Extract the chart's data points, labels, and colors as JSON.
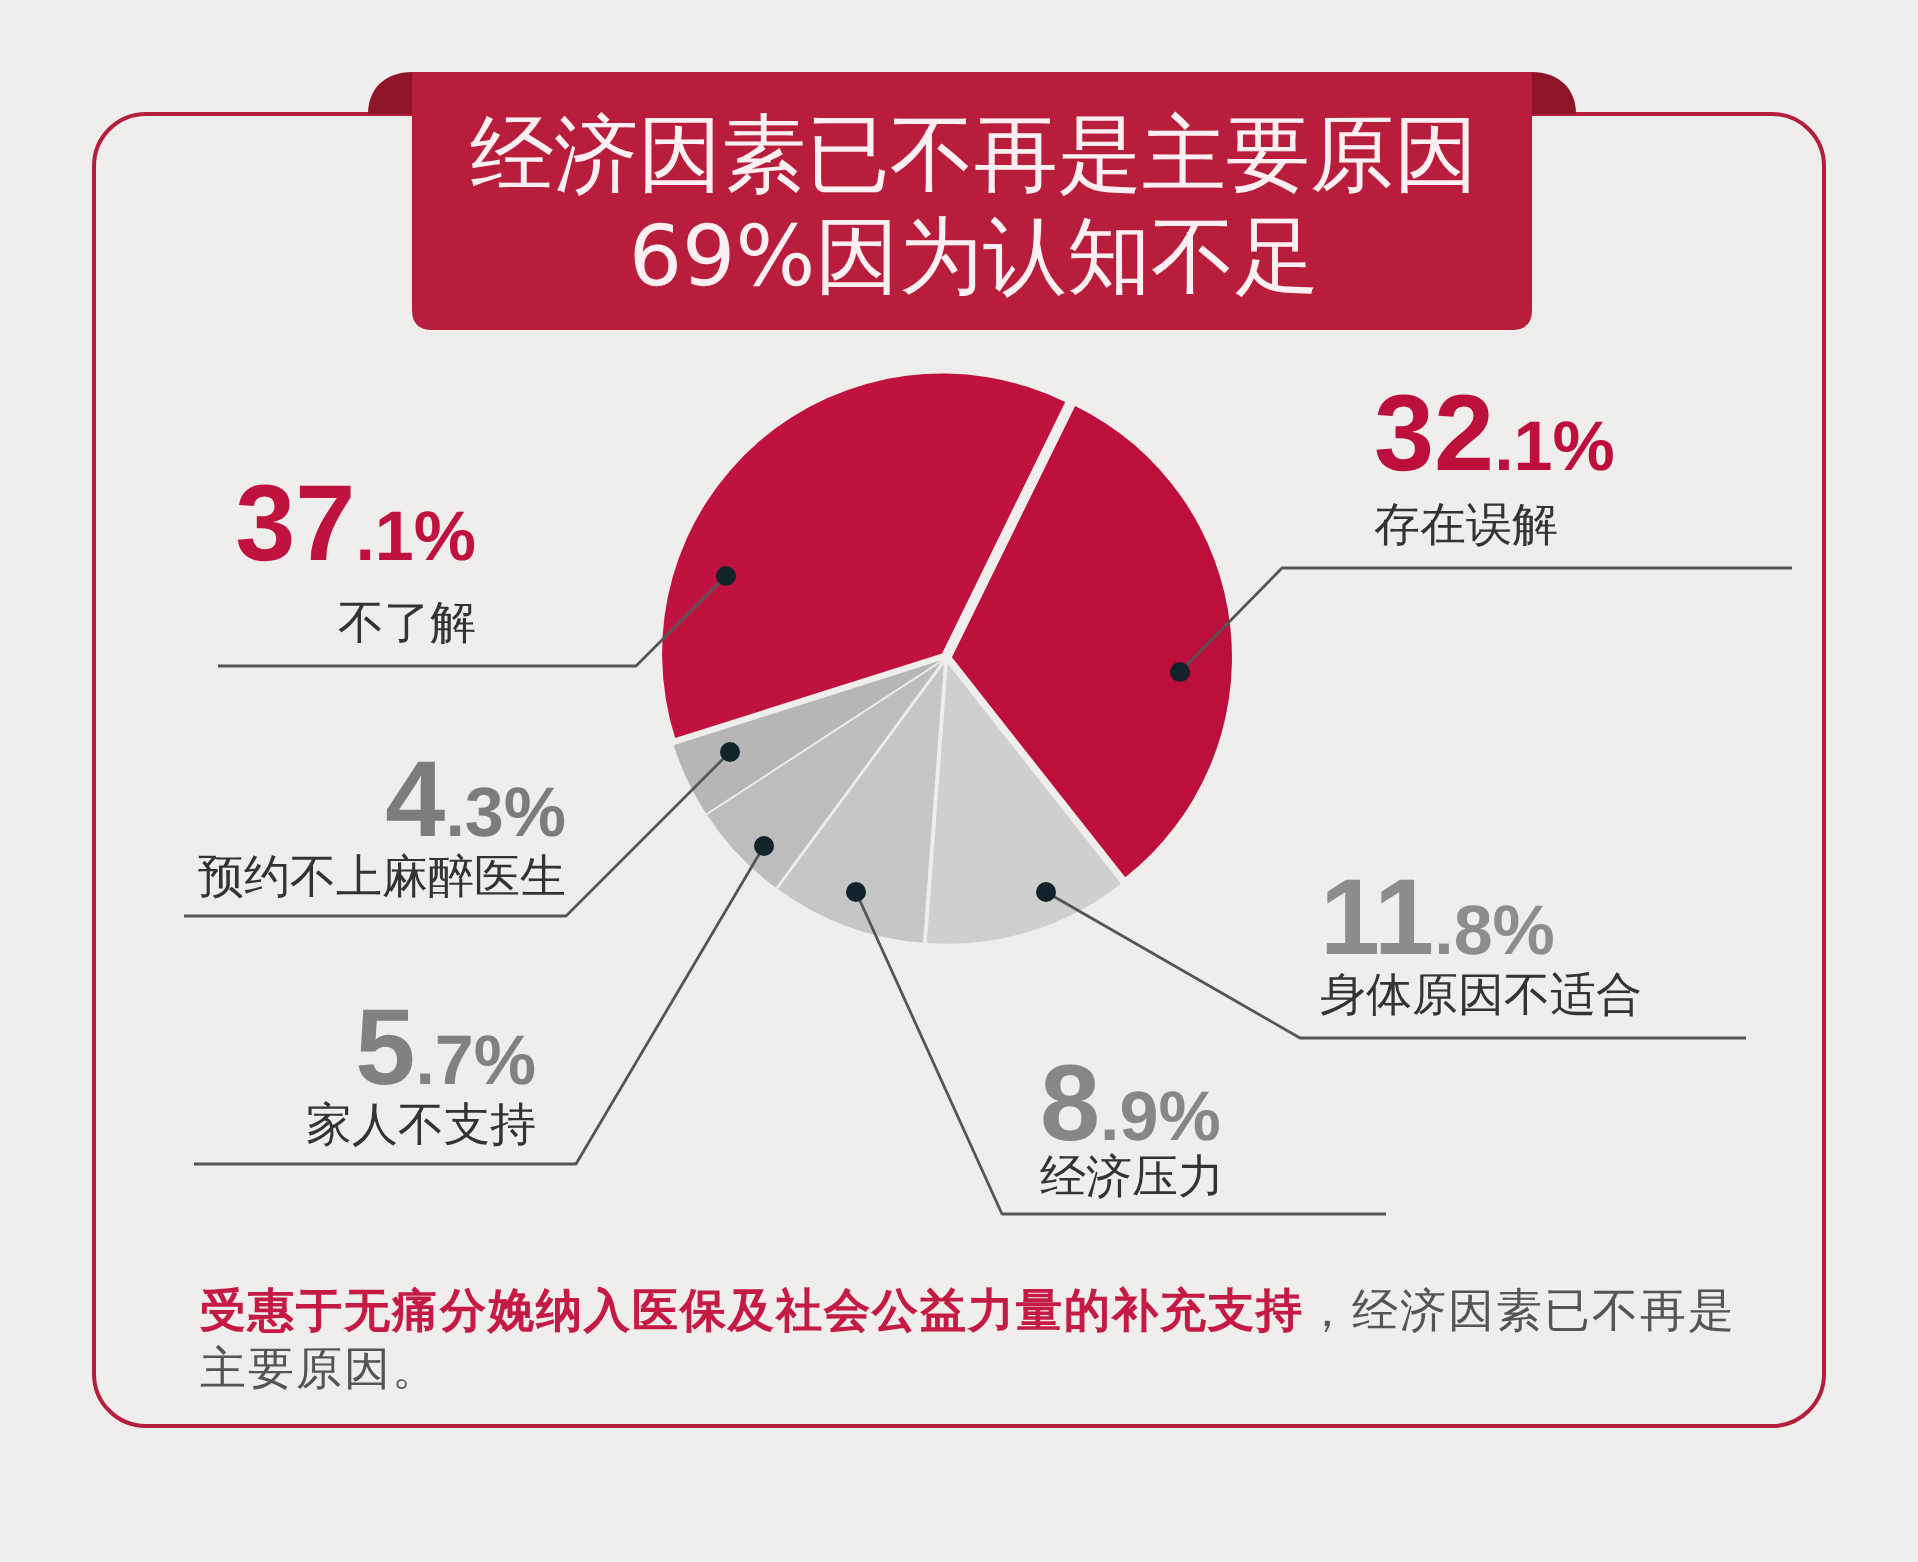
{
  "chart_data": {
    "type": "pie",
    "title": "经济因素已不再是主要原因",
    "subtitle": "69%因为认知不足",
    "categories": [
      "不了解",
      "存在误解",
      "身体原因不适合",
      "经济压力",
      "家人不支持",
      "预约不上麻醉医生"
    ],
    "values": [
      37.1,
      32.1,
      11.8,
      8.9,
      5.7,
      4.3
    ],
    "colors": [
      "#c0123f",
      "#bc0f3c",
      "#cfcfcf",
      "#c6c6c6",
      "#bdbdbd",
      "#b6b6b6"
    ],
    "value_labels": [
      "37.1%",
      "32.1%",
      "11.8%",
      "8.9%",
      "5.7%",
      "4.3%"
    ],
    "annotations": [
      "受惠于无痛分娩纳入医保及社会公益力量的补充支持",
      "，经济因素已不再是主要原因。"
    ]
  }
}
